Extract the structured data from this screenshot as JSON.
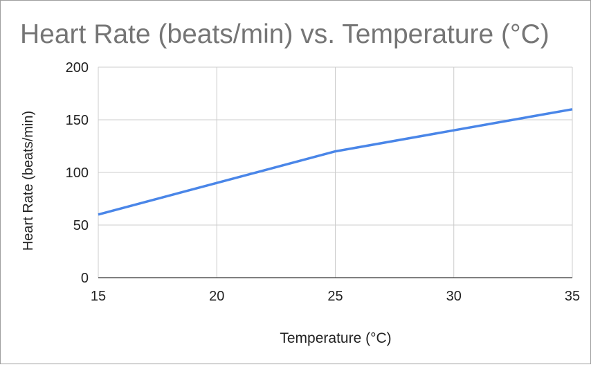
{
  "chart_data": {
    "type": "line",
    "title": "Heart Rate (beats/min) vs. Temperature (°C)",
    "xlabel": "Temperature (°C)",
    "ylabel": "Heart Rate (beats/min)",
    "xlim": [
      15,
      35
    ],
    "ylim": [
      0,
      200
    ],
    "x_ticks": [
      15,
      20,
      25,
      30,
      35
    ],
    "y_ticks": [
      0,
      50,
      100,
      150,
      200
    ],
    "grid": true,
    "legend": "none",
    "series": [
      {
        "name": "Heart Rate (beats/min)",
        "color": "#4a86e8",
        "x": [
          15,
          20,
          25,
          30,
          35
        ],
        "values": [
          60,
          90,
          120,
          140,
          160
        ]
      }
    ]
  }
}
